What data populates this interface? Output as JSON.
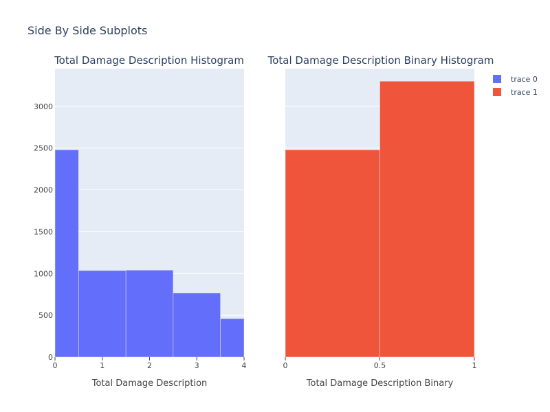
{
  "title": "Side By Side Subplots",
  "chart_data": [
    {
      "type": "bar",
      "title": "Total Damage Description Histogram",
      "xlabel": "Total Damage Description",
      "ylabel": "",
      "series_name": "trace 0",
      "color": "#636efa",
      "bins": [
        {
          "start": 0.0,
          "end": 0.5,
          "value": 2480
        },
        {
          "start": 0.5,
          "end": 1.5,
          "value": 1035
        },
        {
          "start": 1.5,
          "end": 2.5,
          "value": 1040
        },
        {
          "start": 2.5,
          "end": 3.5,
          "value": 765
        },
        {
          "start": 3.5,
          "end": 4.0,
          "value": 460
        }
      ],
      "xlim": [
        0,
        4
      ],
      "ylim": [
        0,
        3450
      ],
      "x_ticks": [
        {
          "value": 0,
          "label": "0"
        },
        {
          "value": 1,
          "label": "1"
        },
        {
          "value": 2,
          "label": "2"
        },
        {
          "value": 3,
          "label": "3"
        },
        {
          "value": 4,
          "label": "4"
        }
      ],
      "y_ticks": [
        {
          "value": 0,
          "label": "0"
        },
        {
          "value": 500,
          "label": "500"
        },
        {
          "value": 1000,
          "label": "1000"
        },
        {
          "value": 1500,
          "label": "1500"
        },
        {
          "value": 2000,
          "label": "2000"
        },
        {
          "value": 2500,
          "label": "2500"
        },
        {
          "value": 3000,
          "label": "3000"
        }
      ],
      "grid": true
    },
    {
      "type": "bar",
      "title": "Total Damage Description Binary Histogram",
      "xlabel": "Total Damage Description Binary",
      "ylabel": "",
      "series_name": "trace 1",
      "color": "#ef553b",
      "bins": [
        {
          "start": 0.0,
          "end": 0.5,
          "value": 2480
        },
        {
          "start": 0.5,
          "end": 1.0,
          "value": 3300
        }
      ],
      "xlim": [
        0,
        1
      ],
      "ylim": [
        0,
        3450
      ],
      "x_ticks": [
        {
          "value": 0,
          "label": "0"
        },
        {
          "value": 0.5,
          "label": "0.5"
        },
        {
          "value": 1,
          "label": "1"
        }
      ],
      "y_ticks": [
        {
          "value": 0,
          "label": ""
        },
        {
          "value": 500,
          "label": ""
        },
        {
          "value": 1000,
          "label": ""
        },
        {
          "value": 1500,
          "label": ""
        },
        {
          "value": 2000,
          "label": ""
        },
        {
          "value": 2500,
          "label": ""
        },
        {
          "value": 3000,
          "label": ""
        }
      ],
      "grid": true
    }
  ],
  "legend": {
    "placement": "top-right",
    "items": [
      {
        "label": "trace 0",
        "color": "#636efa"
      },
      {
        "label": "trace 1",
        "color": "#ef553b"
      }
    ]
  },
  "plot_bg": "#e5ecf6",
  "grid_color": "#ffffff"
}
